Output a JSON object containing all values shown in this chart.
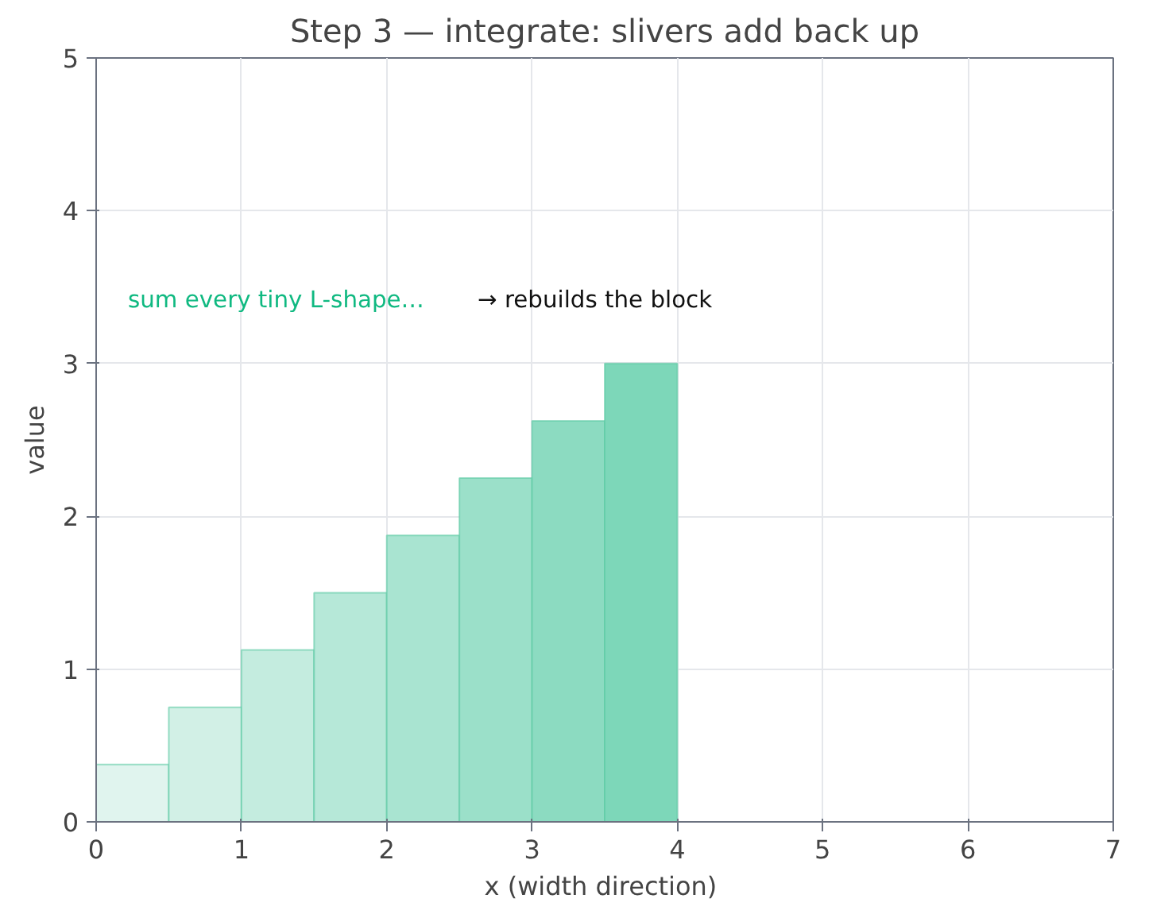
{
  "chart_data": {
    "type": "histogram",
    "title": "Step 3 — integrate: slivers add back up",
    "xlabel": "x  (width direction)",
    "ylabel": "value",
    "bins": [
      0,
      0.5,
      1,
      1.5,
      2,
      2.5,
      3,
      3.5,
      4
    ],
    "values": [
      0.375,
      0.75,
      1.125,
      1.5,
      1.875,
      2.25,
      2.625,
      3.0
    ],
    "colors": [
      "#e0f4ee",
      "#d2f0e6",
      "#c4ecdf",
      "#b6e8d8",
      "#a9e4d1",
      "#9be0c9",
      "#8cdbc1",
      "#7dd7b9"
    ],
    "xlim": [
      0,
      7
    ],
    "ylim": [
      0,
      5
    ],
    "xticks": [
      0,
      1,
      2,
      3,
      4,
      5,
      6,
      7
    ],
    "yticks": [
      0,
      1,
      2,
      3,
      4,
      5
    ],
    "grid": true,
    "annotations": [
      "sum every tiny L-shape…",
      "→ rebuilds the block"
    ]
  }
}
